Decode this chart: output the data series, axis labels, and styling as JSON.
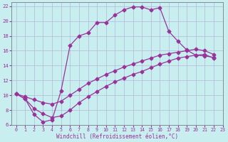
{
  "xlabel": "Windchill (Refroidissement éolien,°C)",
  "bg_color": "#c8eef0",
  "grid_color": "#b0b8d8",
  "line_color": "#993399",
  "xlim": [
    -0.5,
    23
  ],
  "ylim": [
    6,
    22.5
  ],
  "yticks": [
    6,
    8,
    10,
    12,
    14,
    16,
    18,
    20,
    22
  ],
  "xticks": [
    0,
    1,
    2,
    3,
    4,
    5,
    6,
    7,
    8,
    9,
    10,
    11,
    12,
    13,
    14,
    15,
    16,
    17,
    18,
    19,
    20,
    21,
    22,
    23
  ],
  "curve1_x": [
    0,
    1,
    2,
    3,
    4,
    5,
    6,
    7,
    8,
    9,
    10,
    11,
    12,
    13,
    14,
    15,
    16,
    17,
    18,
    19,
    20,
    21,
    22
  ],
  "curve1_y": [
    10.2,
    9.5,
    7.4,
    6.4,
    6.7,
    10.6,
    16.7,
    18.0,
    18.4,
    19.8,
    19.8,
    20.8,
    21.5,
    21.9,
    21.9,
    21.5,
    21.8,
    18.6,
    17.3,
    16.1,
    15.4,
    15.5,
    15.0
  ],
  "curve2_x": [
    0,
    1,
    2,
    3,
    4,
    5,
    6,
    7,
    8,
    9,
    10,
    11,
    12,
    13,
    14,
    15,
    16,
    17,
    18,
    19,
    20,
    21,
    22
  ],
  "curve2_y": [
    10.2,
    9.8,
    9.4,
    9.0,
    8.8,
    9.2,
    10.0,
    10.8,
    11.6,
    12.2,
    12.8,
    13.3,
    13.8,
    14.2,
    14.6,
    15.0,
    15.4,
    15.6,
    15.8,
    16.0,
    16.2,
    16.0,
    15.5
  ],
  "curve3_x": [
    0,
    1,
    2,
    3,
    4,
    5,
    6,
    7,
    8,
    9,
    10,
    11,
    12,
    13,
    14,
    15,
    16,
    17,
    18,
    19,
    20,
    21,
    22
  ],
  "curve3_y": [
    10.2,
    9.5,
    8.2,
    7.5,
    7.0,
    7.2,
    8.0,
    9.0,
    9.8,
    10.5,
    11.2,
    11.8,
    12.3,
    12.8,
    13.2,
    13.7,
    14.2,
    14.6,
    15.0,
    15.2,
    15.4,
    15.3,
    15.1
  ]
}
